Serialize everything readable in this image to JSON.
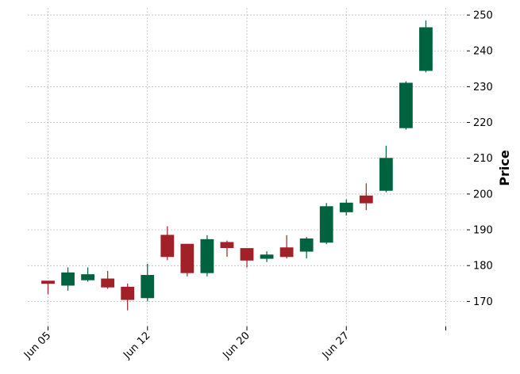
{
  "chart_data": {
    "type": "candlestick",
    "title": "",
    "xlabel": "",
    "ylabel": "Price",
    "ylim": [
      163,
      252
    ],
    "y_ticks": [
      170,
      180,
      190,
      200,
      210,
      220,
      230,
      240,
      250
    ],
    "x_tick_labels": [
      "Jun 05",
      "Jun 12",
      "Jun 20",
      "Jun 27",
      ""
    ],
    "x_tick_positions": [
      0,
      5,
      10,
      15,
      20
    ],
    "grid": true,
    "up_color": "#006340",
    "down_color": "#a02128",
    "candles": [
      {
        "open": 175.7,
        "high": 175.7,
        "low": 172.0,
        "close": 175.0
      },
      {
        "open": 174.5,
        "high": 179.5,
        "low": 173.0,
        "close": 178.0
      },
      {
        "open": 176.0,
        "high": 179.5,
        "low": 175.5,
        "close": 177.5
      },
      {
        "open": 176.3,
        "high": 178.5,
        "low": 173.5,
        "close": 174.0
      },
      {
        "open": 174.0,
        "high": 175.0,
        "low": 167.5,
        "close": 170.5
      },
      {
        "open": 171.0,
        "high": 180.5,
        "low": 170.0,
        "close": 177.3
      },
      {
        "open": 188.5,
        "high": 191.0,
        "low": 181.5,
        "close": 182.5
      },
      {
        "open": 186.0,
        "high": 186.0,
        "low": 177.0,
        "close": 178.0
      },
      {
        "open": 178.0,
        "high": 188.5,
        "low": 177.0,
        "close": 187.3
      },
      {
        "open": 186.5,
        "high": 187.0,
        "low": 182.5,
        "close": 185.0
      },
      {
        "open": 184.8,
        "high": 184.8,
        "low": 179.5,
        "close": 181.5
      },
      {
        "open": 182.0,
        "high": 184.0,
        "low": 181.0,
        "close": 183.0
      },
      {
        "open": 185.0,
        "high": 188.5,
        "low": 182.0,
        "close": 182.5
      },
      {
        "open": 184.0,
        "high": 188.0,
        "low": 182.0,
        "close": 187.5
      },
      {
        "open": 186.5,
        "high": 197.5,
        "low": 186.0,
        "close": 196.5
      },
      {
        "open": 195.0,
        "high": 198.5,
        "low": 194.0,
        "close": 197.5
      },
      {
        "open": 199.5,
        "high": 203.0,
        "low": 195.5,
        "close": 197.5
      },
      {
        "open": 201.0,
        "high": 213.5,
        "low": 200.5,
        "close": 210.0
      },
      {
        "open": 218.5,
        "high": 231.5,
        "low": 218.0,
        "close": 231.0
      },
      {
        "open": 234.5,
        "high": 248.5,
        "low": 234.0,
        "close": 246.5
      }
    ]
  }
}
